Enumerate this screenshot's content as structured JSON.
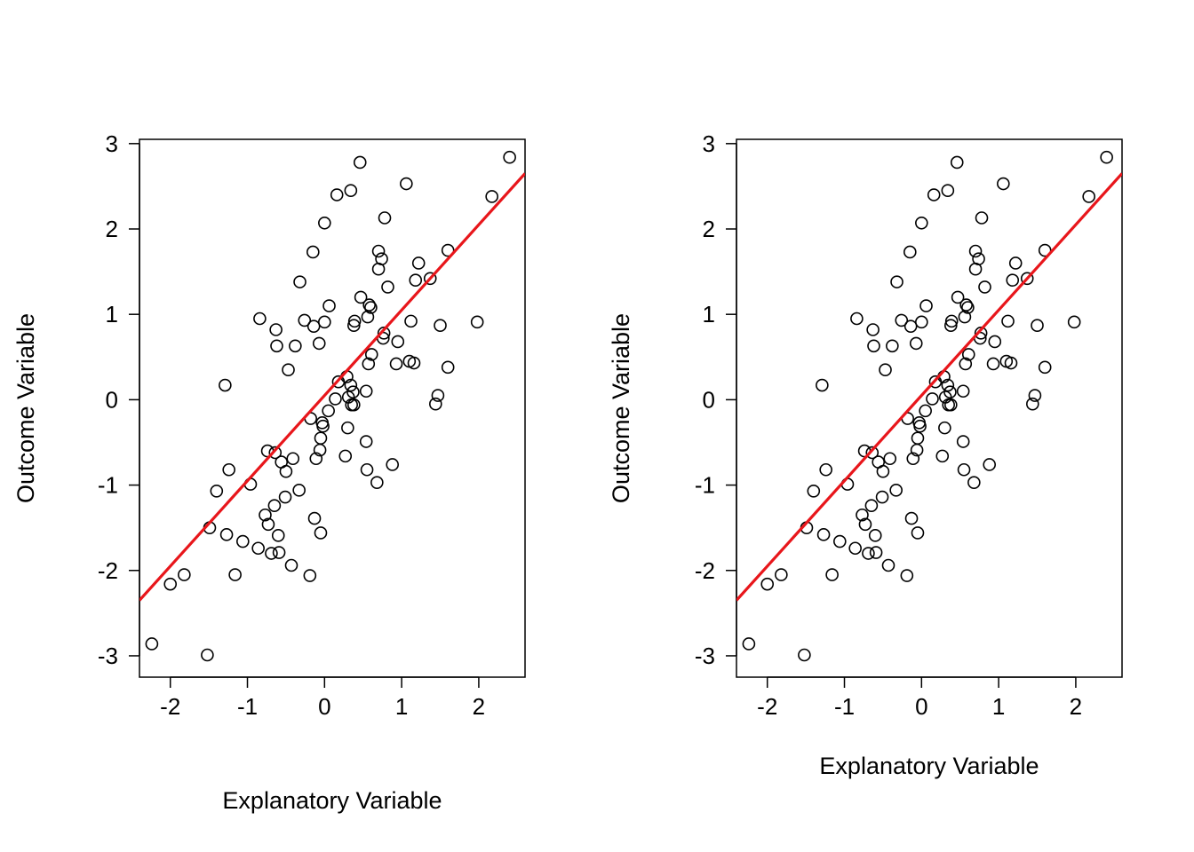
{
  "chart_data": [
    {
      "type": "scatter",
      "title": "",
      "xlabel": "Explanatory Variable",
      "ylabel": "Outcome Variable",
      "xlim": [
        -2.4,
        2.6
      ],
      "ylim": [
        -3.25,
        3.05
      ],
      "xticks": [
        "-2",
        "-1",
        "0",
        "1",
        "2"
      ],
      "yticks": [
        "-3",
        "-2",
        "-1",
        "0",
        "1",
        "2",
        "3"
      ],
      "grid": false,
      "point_color": "#000000",
      "line_color": "#e8161b",
      "fit_line": {
        "intercept": 0.05,
        "slope": 1.0
      },
      "points_ref": "shared_points"
    },
    {
      "type": "scatter",
      "title": "",
      "xlabel": "Explanatory Variable",
      "ylabel": "Outcome Variable",
      "xlim": [
        -2.4,
        2.6
      ],
      "ylim": [
        -3.25,
        3.05
      ],
      "xticks": [
        "-2",
        "-1",
        "0",
        "1",
        "2"
      ],
      "yticks": [
        "-3",
        "-2",
        "-1",
        "0",
        "1",
        "2",
        "3"
      ],
      "grid": false,
      "point_color": "#000000",
      "line_color": "#e8161b",
      "fit_line": {
        "intercept": 0.05,
        "slope": 1.0
      },
      "points_ref": "shared_points"
    }
  ],
  "shared_points": [
    [
      2.4,
      2.84
    ],
    [
      2.17,
      2.38
    ],
    [
      1.98,
      0.91
    ],
    [
      1.6,
      1.75
    ],
    [
      1.6,
      0.38
    ],
    [
      1.5,
      0.87
    ],
    [
      1.47,
      0.05
    ],
    [
      1.44,
      -0.05
    ],
    [
      1.37,
      1.42
    ],
    [
      1.22,
      1.6
    ],
    [
      1.18,
      1.4
    ],
    [
      1.16,
      0.43
    ],
    [
      1.12,
      0.92
    ],
    [
      1.1,
      0.45
    ],
    [
      1.06,
      2.53
    ],
    [
      0.95,
      0.68
    ],
    [
      0.93,
      0.42
    ],
    [
      0.88,
      -0.76
    ],
    [
      0.82,
      1.32
    ],
    [
      0.78,
      2.13
    ],
    [
      0.77,
      0.78
    ],
    [
      0.76,
      0.72
    ],
    [
      0.74,
      1.65
    ],
    [
      0.7,
      1.74
    ],
    [
      0.7,
      1.53
    ],
    [
      0.68,
      -0.97
    ],
    [
      0.61,
      0.53
    ],
    [
      0.6,
      1.08
    ],
    [
      0.58,
      1.11
    ],
    [
      0.57,
      0.42
    ],
    [
      0.56,
      0.97
    ],
    [
      0.55,
      -0.82
    ],
    [
      0.54,
      -0.49
    ],
    [
      0.54,
      0.1
    ],
    [
      0.47,
      1.2
    ],
    [
      0.46,
      2.78
    ],
    [
      0.39,
      0.92
    ],
    [
      0.38,
      0.87
    ],
    [
      0.38,
      -0.06
    ],
    [
      0.37,
      0.09
    ],
    [
      0.35,
      -0.06
    ],
    [
      0.34,
      0.17
    ],
    [
      0.34,
      2.45
    ],
    [
      0.31,
      0.03
    ],
    [
      0.3,
      -0.33
    ],
    [
      0.29,
      0.27
    ],
    [
      0.27,
      -0.66
    ],
    [
      0.18,
      0.21
    ],
    [
      0.16,
      2.4
    ],
    [
      0.14,
      0.01
    ],
    [
      0.06,
      1.1
    ],
    [
      0.05,
      -0.13
    ],
    [
      0.0,
      0.91
    ],
    [
      0.0,
      2.07
    ],
    [
      -0.02,
      -0.31
    ],
    [
      -0.03,
      -0.27
    ],
    [
      -0.05,
      -0.45
    ],
    [
      -0.05,
      -1.56
    ],
    [
      -0.06,
      -0.59
    ],
    [
      -0.07,
      0.66
    ],
    [
      -0.11,
      -0.69
    ],
    [
      -0.13,
      -1.39
    ],
    [
      -0.14,
      0.86
    ],
    [
      -0.15,
      1.73
    ],
    [
      -0.18,
      -0.22
    ],
    [
      -0.19,
      -2.06
    ],
    [
      -0.26,
      0.93
    ],
    [
      -0.32,
      1.38
    ],
    [
      -0.33,
      -1.06
    ],
    [
      -0.38,
      0.63
    ],
    [
      -0.41,
      -0.69
    ],
    [
      -0.43,
      -1.94
    ],
    [
      -0.47,
      0.35
    ],
    [
      -0.5,
      -0.84
    ],
    [
      -0.51,
      -1.14
    ],
    [
      -0.56,
      -0.73
    ],
    [
      -0.59,
      -1.79
    ],
    [
      -0.6,
      -1.59
    ],
    [
      -0.62,
      0.63
    ],
    [
      -0.63,
      0.82
    ],
    [
      -0.64,
      -0.62
    ],
    [
      -0.65,
      -1.24
    ],
    [
      -0.69,
      -1.8
    ],
    [
      -0.73,
      -1.46
    ],
    [
      -0.74,
      -0.6
    ],
    [
      -0.77,
      -1.35
    ],
    [
      -0.84,
      0.95
    ],
    [
      -0.86,
      -1.74
    ],
    [
      -0.96,
      -0.99
    ],
    [
      -1.06,
      -1.66
    ],
    [
      -1.16,
      -2.05
    ],
    [
      -1.24,
      -0.82
    ],
    [
      -1.27,
      -1.58
    ],
    [
      -1.29,
      0.17
    ],
    [
      -1.4,
      -1.07
    ],
    [
      -1.49,
      -1.5
    ],
    [
      -1.52,
      -2.99
    ],
    [
      -1.82,
      -2.05
    ],
    [
      -2.0,
      -2.16
    ],
    [
      -2.24,
      -2.86
    ]
  ]
}
